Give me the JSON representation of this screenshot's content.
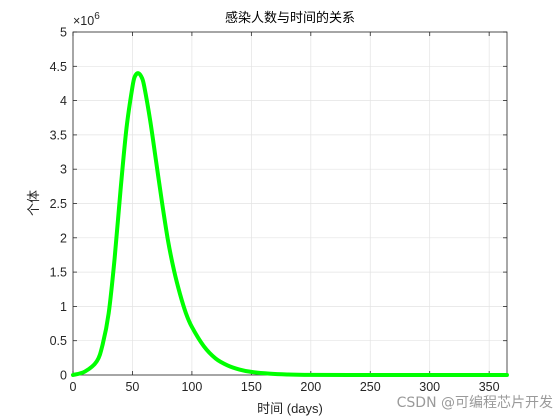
{
  "chart_data": {
    "type": "line",
    "title": "感染人数与时间的关系",
    "xlabel": "时间 (days)",
    "ylabel": "个体",
    "xlim": [
      0,
      365
    ],
    "ylim": [
      0,
      5000000
    ],
    "x_ticks": [
      0,
      50,
      100,
      150,
      200,
      250,
      300,
      350
    ],
    "y_ticks": [
      0,
      500000,
      1000000,
      1500000,
      2000000,
      2500000,
      3000000,
      3500000,
      4000000,
      4500000,
      5000000
    ],
    "y_tick_labels": [
      "0",
      "0.5",
      "1",
      "1.5",
      "2",
      "2.5",
      "3",
      "3.5",
      "4",
      "4.5",
      "5"
    ],
    "y_exponent_label": "×10",
    "y_exponent_power": "6",
    "grid": true,
    "line_color": "#00ff00",
    "series": [
      {
        "x": [
          0,
          10,
          20,
          25,
          30,
          35,
          40,
          45,
          50,
          52,
          55,
          58,
          60,
          65,
          70,
          75,
          80,
          85,
          90,
          95,
          100,
          110,
          120,
          130,
          140,
          150,
          165,
          180,
          200,
          250,
          300,
          365
        ],
        "values": [
          0,
          50000,
          200000,
          450000,
          900000,
          1700000,
          2700000,
          3600000,
          4200000,
          4350000,
          4400000,
          4330000,
          4200000,
          3700000,
          3100000,
          2500000,
          1950000,
          1520000,
          1180000,
          900000,
          700000,
          420000,
          240000,
          140000,
          80000,
          45000,
          20000,
          8000,
          2000,
          0,
          0,
          0
        ]
      }
    ]
  },
  "watermark": "CSDN @可编程芯片开发"
}
